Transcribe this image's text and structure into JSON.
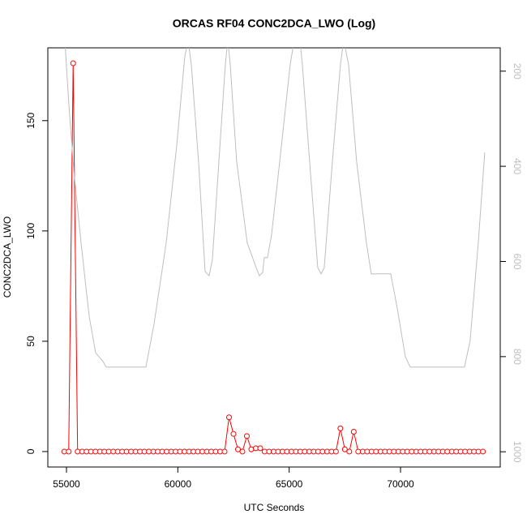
{
  "chart_data": {
    "type": "line",
    "title": "ORCAS RF04 CONC2DCA_LWO (Log)",
    "xlabel": "UTC Seconds",
    "ylabel": "CONC2DCA_LWO",
    "xlim": [
      54163,
      74478
    ],
    "ylim": [
      -7,
      183
    ],
    "y2lim": [
      1032,
      151
    ],
    "xticks": [
      55000,
      60000,
      65000,
      70000
    ],
    "yticks": [
      0,
      50,
      100,
      150
    ],
    "y2ticks": [
      200,
      400,
      600,
      800,
      1000
    ],
    "series": [
      {
        "color": "#ff0000",
        "marker": "circle",
        "x": [
          54900,
          55100,
          55300,
          55500,
          55700,
          55900,
          56100,
          56300,
          56500,
          56700,
          56900,
          57100,
          57300,
          57500,
          57700,
          57900,
          58100,
          58300,
          58500,
          58700,
          58900,
          59100,
          59300,
          59500,
          59700,
          59900,
          60100,
          60300,
          60500,
          60700,
          60900,
          61100,
          61300,
          61500,
          61700,
          61900,
          62100,
          62300,
          62500,
          62700,
          62900,
          63100,
          63300,
          63500,
          63700,
          63900,
          64100,
          64300,
          64500,
          64700,
          64900,
          65100,
          65300,
          65500,
          65700,
          65900,
          66100,
          66300,
          66500,
          66700,
          66900,
          67100,
          67300,
          67500,
          67700,
          67900,
          68100,
          68300,
          68500,
          68700,
          68900,
          69100,
          69300,
          69500,
          69700,
          69900,
          70100,
          70300,
          70500,
          70700,
          70900,
          71100,
          71300,
          71500,
          71700,
          71900,
          72100,
          72300,
          72500,
          72700,
          72900,
          73100,
          73300,
          73500,
          73700
        ],
        "values": [
          0,
          0,
          176,
          0,
          0,
          0,
          0,
          0,
          0,
          0,
          0,
          0,
          0,
          0,
          0,
          0,
          0,
          0,
          0,
          0,
          0,
          0,
          0,
          0,
          0,
          0,
          0,
          0,
          0,
          0,
          0,
          0,
          0,
          0,
          0,
          0,
          0,
          15.5,
          8,
          1,
          0,
          7,
          1,
          1.5,
          1.5,
          0,
          0,
          0,
          0,
          0,
          0,
          0,
          0,
          0,
          0,
          0,
          0,
          0,
          0,
          0,
          0,
          0,
          10.5,
          1,
          0,
          9,
          0,
          0,
          0,
          0,
          0,
          0,
          0,
          0,
          0,
          0,
          0,
          0,
          0,
          0,
          0,
          0,
          0,
          0,
          0,
          0,
          0,
          0,
          0,
          0,
          0,
          0,
          0,
          0,
          0
        ]
      },
      {
        "color": "#bebebe",
        "axis": "y2",
        "x": [
          54927,
          55109,
          55328,
          55655,
          56019,
          56310,
          56638,
          56784,
          58567,
          58931,
          59477,
          59950,
          60314,
          60460,
          60606,
          60933,
          61224,
          61406,
          61552,
          61843,
          62134,
          62244,
          62353,
          62644,
          63117,
          63518,
          63663,
          63809,
          63882,
          64027,
          64209,
          64573,
          65046,
          65228,
          65483,
          65592,
          65920,
          66284,
          66430,
          66575,
          66939,
          67303,
          67449,
          67667,
          68031,
          68468,
          68687,
          69560,
          69851,
          70215,
          70434,
          72873,
          73127,
          73491,
          73782
        ],
        "values": [
          135,
          272,
          408,
          561,
          715,
          792,
          810,
          822,
          822,
          732,
          561,
          357,
          169,
          135,
          186,
          391,
          621,
          630,
          596,
          391,
          186,
          135,
          186,
          391,
          561,
          613,
          630,
          623,
          592,
          592,
          544,
          391,
          186,
          135,
          135,
          186,
          391,
          613,
          626,
          613,
          391,
          186,
          135,
          186,
          391,
          561,
          626,
          626,
          698,
          800,
          822,
          822,
          766,
          561,
          371
        ]
      }
    ]
  }
}
